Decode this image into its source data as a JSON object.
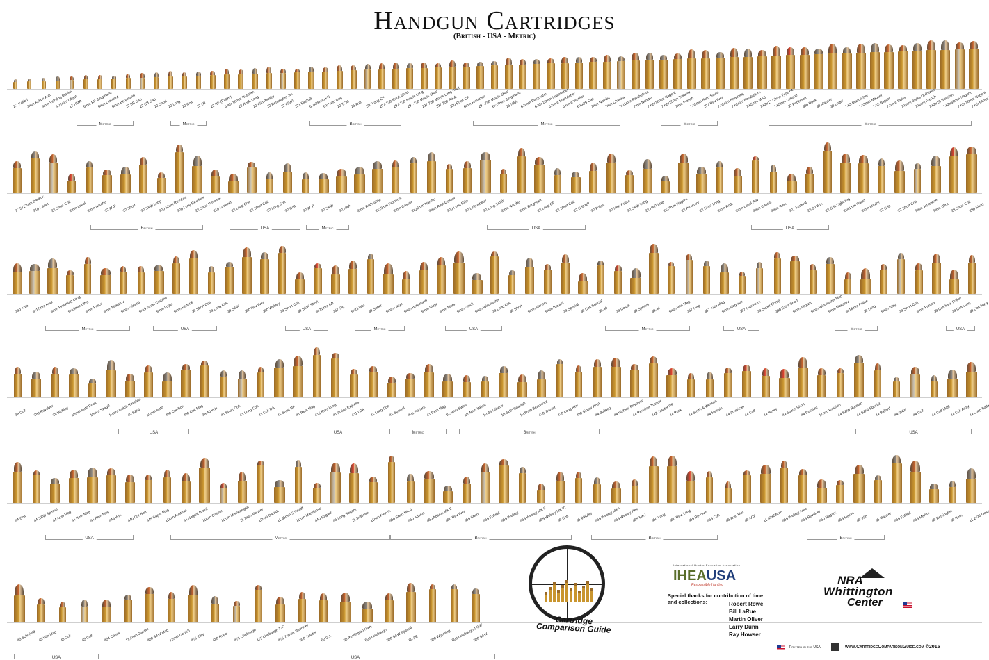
{
  "title": "Handgun Cartridges",
  "subtitle": "(British - USA - Metric)",
  "rows": [
    {
      "labels": [
        "2.7 Kolibri",
        "3mm Kolibri Auto",
        "4mm Velodog Maxim",
        "4.25mm Liliput",
        "17 HMR",
        "5mm RF Bergmann",
        "5mm Clement",
        "5mm Bergmann",
        "22 BB Cap",
        "22 CB Cap",
        "22 Short",
        "22 Long",
        "22 Colt",
        "22 LR",
        "22 RF (Ruger)",
        "5.45x18mm Russian",
        "22 Rook Long",
        "22 Win Rimfire",
        "22 Remington Jet",
        "22 WMR",
        "221 Fireball",
        "5.7x28mm FN",
        "5.5 Velo Dog",
        "22 TCM",
        "25 Auto",
        "230 Long CF",
        "297-230 Rook Short",
        "297-230 Morris Long",
        "297-230 Morris Short",
        "297-230 Morris Long Hunt",
        "297-250 Rook",
        "320 Rook CF",
        "6mm Frommer",
        "297-250 Morris Short",
        "6x17mm Bergmann",
        "25 NAA",
        "6.5mm Bergmann",
        "6.35x23mm Mannlicher",
        "6.5mm Mannlicher",
        "6.5mm Werder",
        "6.5x25 Carl",
        "7mm Nambu",
        "7mm Charola",
        "7x21mm Parabellum",
        "7mm Nambu",
        "7.62x38mm Nagant",
        "7.62x25mm Tokarev",
        "7mm French",
        "7.65mm Roth-Sauer",
        "297 Revolver",
        "7.65mm Browning",
        "7.65mm Parabellum",
        "7.65mm MAS",
        "7.62x17 China Type 64",
        "7.65mm Longue",
        "30 Pedersen",
        "300 Rook",
        "30 Mauser",
        "30 Luger",
        "7.63 Mannlicher",
        "7.63mm Mauser",
        "7.62 Nagant",
        "7.5mm Swiss",
        "7.5mm Swiss Ordnance",
        "7.5mm French",
        "7.62x25 Russian",
        "7.62x39mm Nagant",
        "7.62x38mm Nagant",
        "7.65x54mm Wilcox"
      ],
      "groups": [
        {
          "label": "Metric"
        },
        {
          "label": "Metric"
        },
        {
          "label": "British"
        },
        {
          "label": "Metric"
        },
        {
          "label": "Metric"
        },
        {
          "label": "Metric"
        }
      ]
    },
    {
      "labels": [
        "7.75x17mm Dardick",
        "310 Cadet",
        "32 Short Colt",
        "8mm Lebel",
        "8mm Nambu",
        "32 ACP",
        "32 Short",
        "32 S&W Long",
        "320 Short Revolver",
        "320 Long Revolver",
        "32 Short Revolver",
        "318 Greener",
        "32 Long Colt",
        "32 Short Colt",
        "32 Long Colt",
        "32 Colt",
        "32 ACP",
        "32 S&W",
        "32 NAA",
        "8mm Roth-Steyr",
        "8x19mm Frommer",
        "8mm Gasser",
        "8x22mm Nambu",
        "8mm Rast-Gasser",
        "320 Long Rifle",
        "32 Lefaucheux",
        "32 Long Smith",
        "8mm Nambu",
        "8mm Bergmann",
        "32 Long CF",
        "32 Short Colt",
        "32 Colt NP",
        "32 Police",
        "32 New Police",
        "32 S&W Long",
        "32 H&R Mag",
        "8x27mm Nagant",
        "32 Protector",
        "32 Extra Long",
        "8mm Roth",
        "8mm Lebel Rev",
        "8mm Gasser",
        "8mm Rast",
        "327 Federal",
        "32-20 Win",
        "32 Colt Lightning",
        "8x41mm Raast",
        "8mm Maxim",
        "32 Colt",
        "32 Short Colt",
        "9mm Japanese",
        "9mm Ultra",
        "38 Short Colt",
        "380 Short"
      ],
      "groups": [
        {
          "label": "British"
        },
        {
          "label": "USA"
        },
        {
          "label": "Metric"
        },
        {
          "label": "USA"
        },
        {
          "label": "USA"
        }
      ]
    },
    {
      "labels": [
        "380 Auto",
        "9x17mm Kurz",
        "9mm Browning Long",
        "9x18mm Ultra",
        "9mm Police",
        "9mm Makarov",
        "9mm Glisenti",
        "9x19 Israel Carbine",
        "9mm Luger",
        "9mm Federal",
        "38 Short Colt",
        "38 Long Colt",
        "38 S&W",
        "380 Revolver",
        "380 Webley",
        "38 Short Colt",
        "38 S&W Short",
        "9x21mm IMI",
        "357 Sig",
        "9x23 Win",
        "38 Super",
        "9mm Largo",
        "9mm Bergmann",
        "9mm Steyr",
        "9mm Mars",
        "9mm Glock",
        "9mm Winchester",
        "38 Long Colt",
        "38 Short",
        "9mm Mauser",
        "9mm Bayard",
        "38 Special",
        "38 Colt Special",
        "38-40",
        "38 Casull",
        "38 Special",
        "38-44",
        "9mm Win Mag",
        "357 Mag",
        "357 Auto Mag",
        "9mm Magnum",
        "357 Maximum",
        "38 Super Comp",
        "380 Extra Short",
        "9mm Nagant",
        "9mm Winchester Mag",
        "9mm Makarov",
        "9x18mm Police",
        "38 Long",
        "9mm Steyr",
        "38 Short Colt",
        "9mm French",
        "38 Colt New Police",
        "38 Colt Long",
        "38 Colt Navy"
      ],
      "groups": [
        {
          "label": "Metric"
        },
        {
          "label": "USA"
        },
        {
          "label": "USA"
        },
        {
          "label": "Metric"
        },
        {
          "label": "USA"
        },
        {
          "label": "Metric"
        },
        {
          "label": "USA"
        },
        {
          "label": "Metric"
        },
        {
          "label": "USA"
        }
      ]
    },
    {
      "labels": [
        "38 Colt",
        "380 Revolver",
        "38 Webley",
        "10mm Auto Rook",
        "10mm Szagill",
        "10mm Dutch Revolver",
        "40 S&W",
        "10mm Auto",
        "400 Cor-Bon",
        "400 Colt Mag",
        "38-40 Win",
        "41 Short Colt",
        "41 Long Colt",
        "41 Colt DA",
        "41 Short RF",
        "41 Rem Mag",
        "416 Rem Long",
        "41 Action Express",
        "411 LDA",
        "41 Long Colt",
        "41 Special",
        "401 Herters",
        "41 Rem Mag",
        "10.4mm Swiss",
        "10.4mm Italian",
        "10.35 Glisenti",
        "10.6x25 Spanish",
        "10.8mm Beaumont",
        "420 Tranter",
        "420 Long Rev",
        "450 Sinder Rook",
        "44 Bulldog",
        "44 Webley Revolver",
        "44 Revolver Tranter",
        "442 Tranter RF",
        "44 Rusk",
        "44 Smith & Wesson",
        "44 Merwin",
        "44 American",
        "44 Colt",
        "44 Henry",
        "44 Evans Short",
        "44 Russian",
        "11mm Russian",
        "44 S&W Russian",
        "44 S&W Special",
        "44 Ballard",
        "44 WCF",
        "44 Colt",
        "44 Colt LMR",
        "44 Colt Army",
        "44 Long Ballard"
      ],
      "groups": [
        {
          "label": "USA"
        },
        {
          "label": "USA"
        },
        {
          "label": "Metric"
        },
        {
          "label": "British"
        },
        {
          "label": "USA"
        }
      ]
    },
    {
      "labels": [
        "44 Colt",
        "44 S&W Special",
        "44 Auto Mag",
        "44 Rem Mag",
        "44 Rem Mag",
        "444 Win",
        "440 Cor-Bon",
        "445 Super Mag",
        "11mm Austrian",
        "44 Nagant Brazil",
        "11mm Gasser",
        "11mm Montenegrin",
        "11.7mm Mauser",
        "12mm Danish",
        "11.35mm Schmidt",
        "11mm Mannlicher",
        "440 Nagant",
        "45 Long Nagant",
        "11.3x36mm",
        "11mm French",
        "450 Short MK II",
        "450 Adams",
        "450 Adams MK II",
        "450 Revolver",
        "455 Short",
        "455 Enfield",
        "455 Webley",
        "455 Webley MK II",
        "455 Webley MK VI",
        "45 Colt",
        "45 Webley",
        "455 Webley MK V",
        "455 Webley Rev",
        "455 MK I",
        "450 Long",
        "450 Rev. Long",
        "455 Revolver",
        "455 Colt",
        "45 Auto Rim",
        "45 ACP",
        "11.43x23mm",
        "455 Webley Auto",
        "455 Revolver",
        "450 Nagant",
        "455 Maxim",
        "45 Win",
        "45 Mauser",
        "455 Enfield",
        "455 Martini",
        "45 Remington",
        "45 Rem",
        "11.2x25 Gasser"
      ],
      "groups": [
        {
          "label": "USA"
        },
        {
          "label": "Metric"
        },
        {
          "label": "British"
        },
        {
          "label": "British"
        },
        {
          "label": "British"
        }
      ]
    },
    {
      "labels": [
        "45 Schofield",
        "45 Win Mag",
        "45 Colt",
        "45 Colt",
        "454 Casull",
        "11.4mm Gasser",
        "460 S&W Mag",
        "12mm Danish",
        "476 Eley",
        "480 Ruger",
        "475 Linebaugh",
        "475 Linebaugh 1.4\"",
        "476 Tranter Revolver",
        "500 Tranter",
        "50 G.I.",
        "50 Remington Navy",
        "500 Linebaugh",
        "500 S&W Special",
        "50 AE",
        "500 Wyoming",
        "500 Linebaugh 1-3/8\"",
        "500 S&W"
      ],
      "groups": [
        {
          "label": "USA"
        },
        {
          "label": "USA"
        }
      ]
    }
  ],
  "logos": {
    "ccg_text": "Cartridge Comparison Guide",
    "ihea_top": "International Hunter Education Association",
    "ihea_name_a": "IHEA",
    "ihea_name_b": "USA",
    "ihea_tagline": "Responsible Hunting",
    "nra_line1": "NRA",
    "nra_line2": "Whittington",
    "nra_line3": "Center"
  },
  "thanks": {
    "line1": "Special thanks for contribution of time",
    "line2": "and collections:",
    "names": [
      "Robert Rowe",
      "Bill LaRue",
      "Martin Oliver",
      "Larry Dunn",
      "Ray Howser"
    ]
  },
  "footer": {
    "printed": "Printed in the USA",
    "website": "www.CartridgeComparisonGuide.com",
    "copyright": "©2015"
  },
  "colors": {
    "brass": "#c9952e",
    "brass_dark": "#9a6a28",
    "copper": "#c9632c",
    "lead": "#8e8a84",
    "nickel": "#c7c1b5",
    "polymer_red": "#e0422e"
  }
}
